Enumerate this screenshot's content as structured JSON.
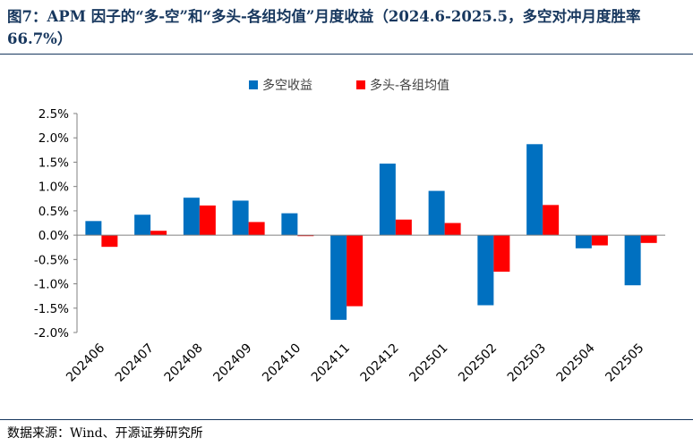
{
  "figure": {
    "title": "图7：APM 因子的“多-空”和“多头-各组均值”月度收益（2024.6-2025.5，多空对冲月度胜率 66.7%）",
    "source": "数据来源：Wind、开源证券研究所"
  },
  "colors": {
    "series_0": "#0070c0",
    "series_1": "#ff0000",
    "title": "#17375e"
  },
  "chart_data": {
    "type": "bar",
    "categories": [
      "202406",
      "202407",
      "202408",
      "202409",
      "202410",
      "202411",
      "202412",
      "202501",
      "202502",
      "202503",
      "202504",
      "202505"
    ],
    "series": [
      {
        "name": "多空收益",
        "values": [
          0.29,
          0.42,
          0.77,
          0.71,
          0.45,
          -1.74,
          1.47,
          0.91,
          -1.44,
          1.87,
          -0.27,
          -1.03
        ]
      },
      {
        "name": "多头-各组均值",
        "values": [
          -0.24,
          0.09,
          0.61,
          0.27,
          -0.02,
          -1.46,
          0.32,
          0.25,
          -0.75,
          0.62,
          -0.21,
          -0.16
        ]
      }
    ],
    "ylim": [
      -2.0,
      2.5
    ],
    "yticks": [
      "-2.0%",
      "-1.5%",
      "-1.0%",
      "-0.5%",
      "0.0%",
      "0.5%",
      "1.0%",
      "1.5%",
      "2.0%",
      "2.5%"
    ],
    "ytick_values": [
      -2.0,
      -1.5,
      -1.0,
      -0.5,
      0.0,
      0.5,
      1.0,
      1.5,
      2.0,
      2.5
    ],
    "grid": false,
    "legend_position": "top-center"
  }
}
